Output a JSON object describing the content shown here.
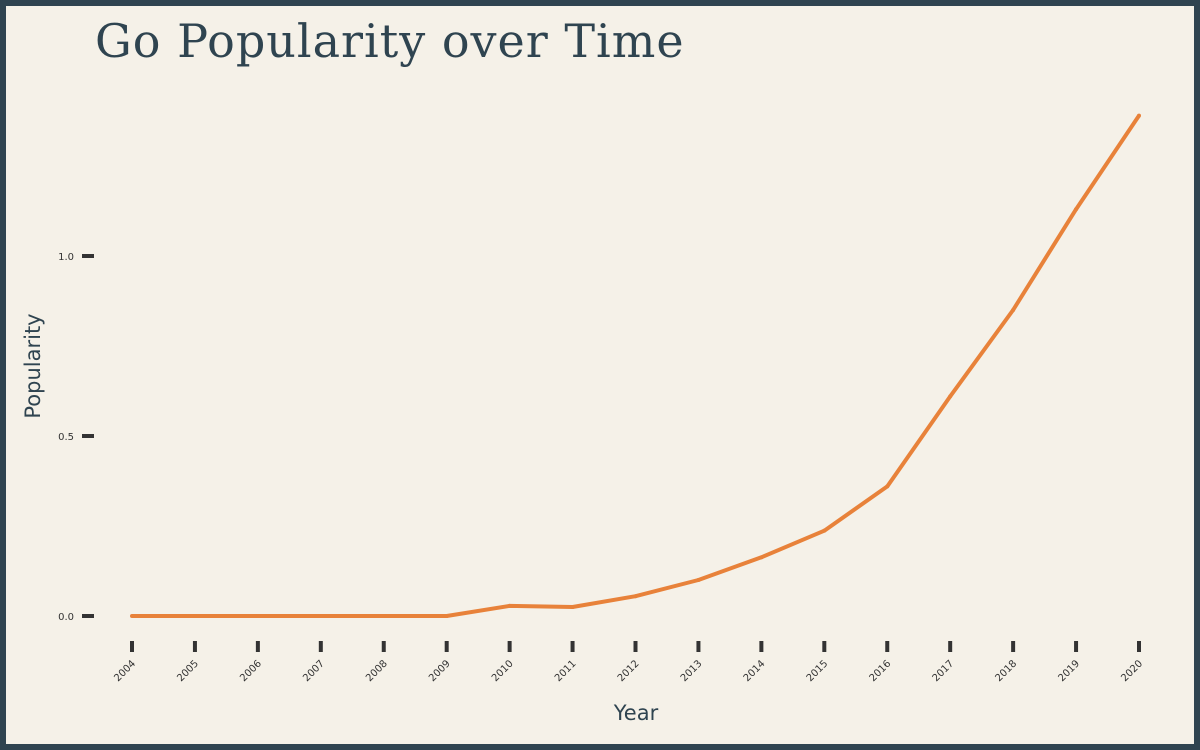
{
  "chart_data": {
    "type": "line",
    "title": "Go Popularity over Time",
    "xlabel": "Year",
    "ylabel": "Popularity",
    "x": [
      "2004",
      "2005",
      "2006",
      "2007",
      "2008",
      "2009",
      "2010",
      "2011",
      "2012",
      "2013",
      "2014",
      "2015",
      "2016",
      "2017",
      "2018",
      "2019",
      "2020"
    ],
    "y_ticks": [
      "0.0",
      "0.5",
      "1.0"
    ],
    "y_tick_values": [
      0.0,
      0.5,
      1.0
    ],
    "ylim": [
      0.0,
      1.4
    ],
    "series": [
      {
        "values": [
          0.0,
          0.0,
          0.0,
          0.0,
          0.0,
          0.0,
          0.028,
          0.025,
          0.055,
          0.1,
          0.163,
          0.237,
          0.36,
          0.61,
          0.85,
          1.13,
          1.39
        ],
        "color": "#e8823a"
      }
    ],
    "grid": false,
    "legend": "none"
  },
  "colors": {
    "background": "#f5f1e8",
    "frame": "#2f4450",
    "text": "#2f4450",
    "tick_mark": "#333333",
    "line": "#e8823a"
  }
}
